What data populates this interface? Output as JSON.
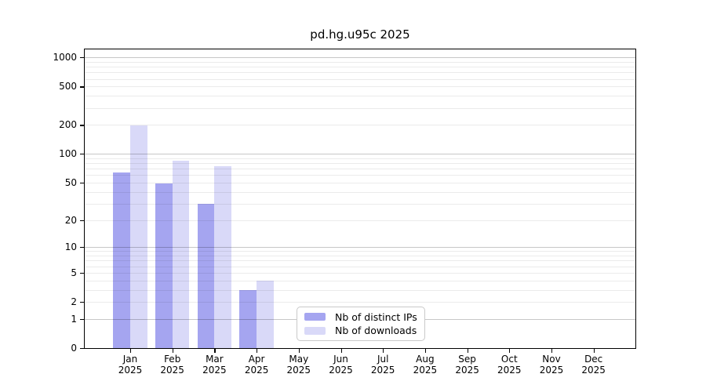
{
  "chart_data": {
    "type": "bar",
    "title": "pd.hg.u95c 2025",
    "y_scale": "log10(value+1)",
    "ylim": [
      0,
      1000
    ],
    "grid": true,
    "legend_position": "bottom-center-inside",
    "y_ticks": [
      0,
      1,
      2,
      5,
      10,
      20,
      50,
      100,
      200,
      500,
      1000
    ],
    "y_major_grid": [
      1,
      10,
      100,
      1000
    ],
    "y_minor_grid": [
      2,
      3,
      4,
      5,
      6,
      7,
      8,
      9,
      20,
      30,
      40,
      50,
      60,
      70,
      80,
      90,
      200,
      300,
      400,
      500,
      600,
      700,
      800,
      900
    ],
    "categories": [
      "Jan",
      "Feb",
      "Mar",
      "Apr",
      "May",
      "Jun",
      "Jul",
      "Aug",
      "Sep",
      "Oct",
      "Nov",
      "Dec"
    ],
    "year_label": "2025",
    "series": [
      {
        "name": "Nb of distinct IPs",
        "color": "#a5a5f0",
        "values": [
          64,
          49,
          30,
          3,
          0,
          0,
          0,
          0,
          0,
          0,
          0,
          0
        ]
      },
      {
        "name": "Nb of downloads",
        "color": "#d9d9f8",
        "values": [
          198,
          85,
          75,
          4,
          0,
          0,
          0,
          0,
          0,
          0,
          0,
          0
        ]
      }
    ]
  }
}
